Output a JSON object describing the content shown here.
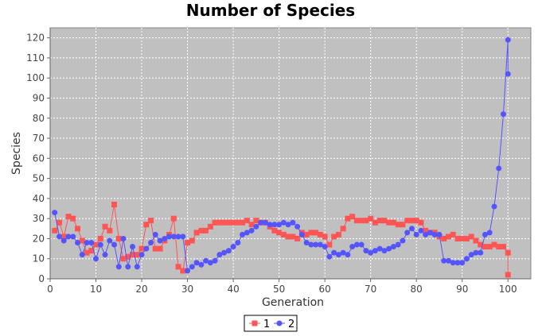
{
  "chart_data": {
    "type": "line",
    "title": "Number of Species",
    "xlabel": "Generation",
    "ylabel": "Species",
    "xlim": [
      0,
      105
    ],
    "ylim": [
      0,
      125
    ],
    "x_ticks": [
      0,
      10,
      20,
      30,
      40,
      50,
      60,
      70,
      80,
      90,
      100
    ],
    "y_ticks": [
      0,
      10,
      20,
      30,
      40,
      50,
      60,
      70,
      80,
      90,
      100,
      110,
      120
    ],
    "grid": true,
    "background_color": "#c0c0c0",
    "grid_color": "#ffffff",
    "legend_position": "bottom-center",
    "series": [
      {
        "name": "1",
        "color": "#ff5555",
        "marker": "square",
        "x": [
          1,
          2,
          3,
          4,
          5,
          6,
          7,
          8,
          9,
          10,
          11,
          12,
          13,
          14,
          15,
          16,
          17,
          18,
          19,
          20,
          21,
          22,
          23,
          24,
          25,
          26,
          27,
          28,
          29,
          30,
          31,
          32,
          33,
          34,
          35,
          36,
          37,
          38,
          39,
          40,
          41,
          42,
          43,
          44,
          45,
          46,
          47,
          48,
          49,
          50,
          51,
          52,
          53,
          54,
          55,
          56,
          57,
          58,
          59,
          60,
          61,
          62,
          63,
          64,
          65,
          66,
          67,
          68,
          69,
          70,
          71,
          72,
          73,
          74,
          75,
          76,
          77,
          78,
          79,
          80,
          81,
          82,
          83,
          84,
          85,
          86,
          87,
          88,
          89,
          90,
          91,
          92,
          93,
          94,
          95,
          96,
          97,
          98,
          99,
          100
        ],
        "y": [
          24,
          28,
          21,
          31,
          30,
          25,
          19,
          13,
          14,
          17,
          20,
          26,
          24,
          37,
          20,
          10,
          11,
          12,
          12,
          15,
          27,
          29,
          15,
          15,
          19,
          22,
          30,
          6,
          4,
          18,
          19,
          23,
          24,
          24,
          26,
          28,
          28,
          28,
          28,
          28,
          28,
          28,
          29,
          27,
          29,
          28,
          28,
          26,
          24,
          23,
          22,
          21,
          21,
          20,
          23,
          22,
          23,
          23,
          22,
          21,
          17,
          21,
          22,
          25,
          30,
          31,
          29,
          29,
          29,
          30,
          28,
          29,
          29,
          28,
          28,
          27,
          27,
          29,
          29,
          29,
          28,
          24,
          23,
          23,
          21,
          20,
          21,
          22,
          20,
          20,
          20,
          21,
          19,
          17,
          16,
          16,
          17,
          16,
          16,
          13
        ]
      },
      {
        "name": "2",
        "color": "#5555ff",
        "marker": "circle",
        "x": [
          1,
          2,
          3,
          4,
          5,
          6,
          7,
          8,
          9,
          10,
          11,
          12,
          13,
          14,
          15,
          16,
          17,
          18,
          19,
          20,
          21,
          22,
          23,
          24,
          25,
          26,
          27,
          28,
          29,
          30,
          31,
          32,
          33,
          34,
          35,
          36,
          37,
          38,
          39,
          40,
          41,
          42,
          43,
          44,
          45,
          46,
          47,
          48,
          49,
          50,
          51,
          52,
          53,
          54,
          55,
          56,
          57,
          58,
          59,
          60,
          61,
          62,
          63,
          64,
          65,
          66,
          67,
          68,
          69,
          70,
          71,
          72,
          73,
          74,
          75,
          76,
          77,
          78,
          79,
          80,
          81,
          82,
          83,
          84,
          85,
          86,
          87,
          88,
          89,
          90,
          91,
          92,
          93,
          94,
          95,
          96,
          97,
          98,
          99,
          100
        ],
        "y": [
          33,
          21,
          19,
          21,
          21,
          18,
          12,
          18,
          18,
          10,
          17,
          12,
          19,
          17,
          6,
          20,
          6,
          16,
          6,
          12,
          15,
          18,
          22,
          19,
          20,
          21,
          21,
          21,
          21,
          4,
          6,
          8,
          7,
          9,
          8,
          9,
          12,
          13,
          14,
          16,
          18,
          22,
          23,
          24,
          26,
          28,
          28,
          27,
          27,
          27,
          28,
          27,
          28,
          26,
          22,
          18,
          17,
          17,
          17,
          16,
          11,
          13,
          12,
          13,
          12,
          16,
          17,
          17,
          14,
          13,
          14,
          15,
          14,
          15,
          16,
          17,
          19,
          23,
          25,
          22,
          24,
          22,
          23,
          22,
          22,
          9,
          9,
          8,
          8,
          8,
          10,
          12,
          13,
          13,
          22,
          23,
          36,
          55,
          82,
          119
        ]
      }
    ],
    "extra_points": [
      {
        "series": "1",
        "x": 100,
        "y": 2
      },
      {
        "series": "2",
        "x": 100,
        "y": 102
      }
    ]
  }
}
